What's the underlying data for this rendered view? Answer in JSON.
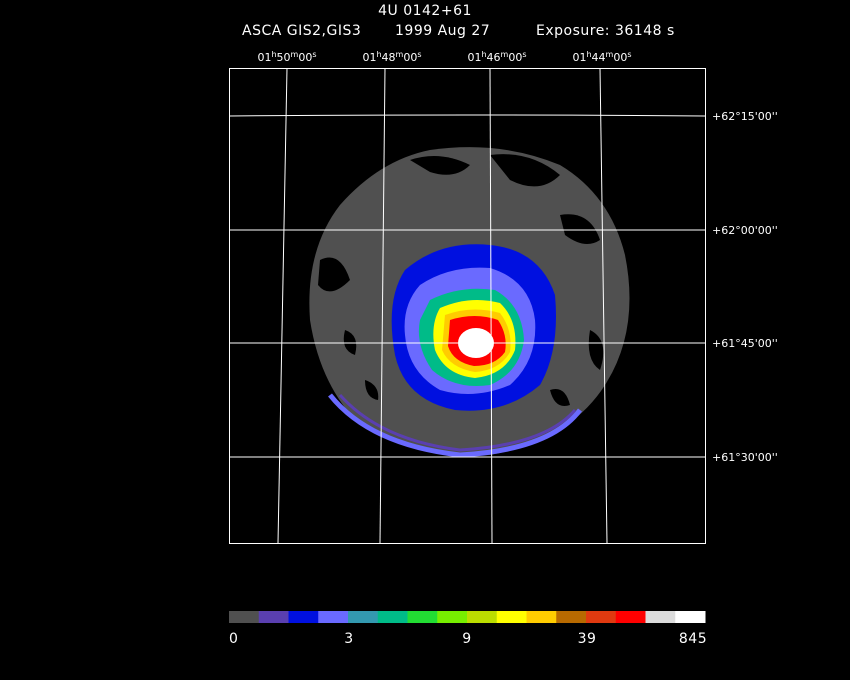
{
  "header": {
    "title": "4U 0142+61",
    "instrument": "ASCA GIS2,GIS3",
    "date": "1999 Aug 27",
    "exposure": "Exposure: 36148 s"
  },
  "ra_labels": [
    [
      "01",
      "h",
      "50",
      "m",
      "00",
      "s"
    ],
    [
      "01",
      "h",
      "48",
      "m",
      "00",
      "s"
    ],
    [
      "01",
      "h",
      "46",
      "m",
      "00",
      "s"
    ],
    [
      "01",
      "h",
      "44",
      "m",
      "00",
      "s"
    ]
  ],
  "dec_labels": [
    "+62°15'00''",
    "+62°00'00''",
    "+61°45'00''",
    "+61°30'00''"
  ],
  "colorbar": {
    "colors": [
      "#505050",
      "#5a3fb0",
      "#0010e0",
      "#6a6aff",
      "#3399b0",
      "#00bb88",
      "#22dd33",
      "#77ee00",
      "#bbdd00",
      "#ffff00",
      "#ffcc00",
      "#b86a00",
      "#e03a10",
      "#ff0000",
      "#dcdcdc",
      "#ffffff"
    ],
    "labels": [
      "0",
      "3",
      "9",
      "39",
      "845"
    ]
  }
}
